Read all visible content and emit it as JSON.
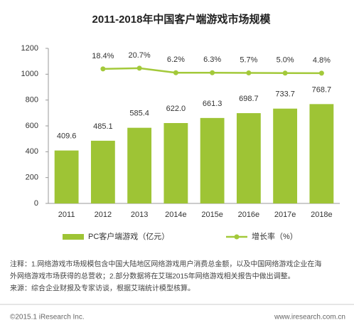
{
  "chart_data": {
    "type": "bar",
    "title": "2011-2018年中国客户端游戏市场规模",
    "categories": [
      "2011",
      "2012",
      "2013",
      "2014e",
      "2015e",
      "2016e",
      "2017e",
      "2018e"
    ],
    "series": [
      {
        "name": "PC客户端游戏（亿元）",
        "type": "bar",
        "color": "#9ec435",
        "values": [
          409.6,
          485.1,
          585.4,
          622.0,
          661.3,
          698.7,
          733.7,
          768.7
        ],
        "value_labels": [
          "409.6",
          "485.1",
          "585.4",
          "622.0",
          "661.3",
          "698.7",
          "733.7",
          "768.7"
        ]
      },
      {
        "name": "增长率（%）",
        "type": "line",
        "axis": "y2",
        "color": "#a3c93a",
        "values": [
          null,
          18.4,
          20.7,
          6.2,
          6.3,
          5.7,
          5.0,
          4.8
        ],
        "value_labels": [
          null,
          "18.4%",
          "20.7%",
          "6.2%",
          "6.3%",
          "5.7%",
          "5.0%",
          "4.8%"
        ]
      }
    ],
    "ylim": [
      0,
      1200
    ],
    "yticks": [
      0,
      200,
      400,
      600,
      800,
      1000,
      1200
    ],
    "y2lim": [
      -411,
      84
    ],
    "grid": false
  },
  "notes": [
    "注释：1.网络游戏市场规模包含中国大陆地区网络游戏用户消费总金额，以及中国网络游戏企业在海",
    "外网络游戏市场获得的总营收；2.部分数据将在艾瑞2015年网络游戏相关报告中做出调整。",
    "来源：综合企业财报及专家访谈，根据艾瑞统计模型核算。"
  ],
  "footer": {
    "copyright": "©2015.1 iResearch Inc.",
    "site": "www.iresearch.com.cn"
  }
}
